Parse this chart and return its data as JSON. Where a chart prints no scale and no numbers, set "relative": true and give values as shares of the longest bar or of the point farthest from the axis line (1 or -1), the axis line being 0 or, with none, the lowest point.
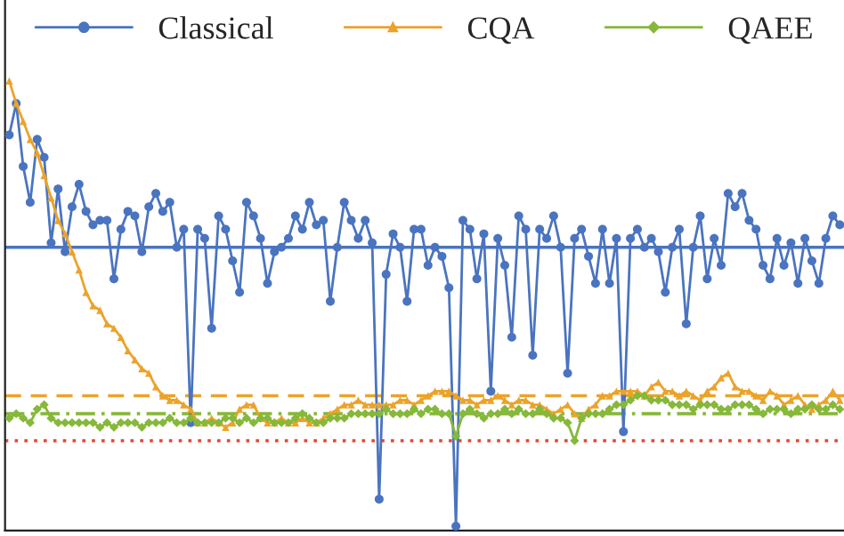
{
  "chart_data": {
    "type": "line",
    "relative": true,
    "legend": "top",
    "categories": [
      null,
      null,
      null,
      null,
      null,
      null,
      null,
      null,
      null,
      null,
      null,
      null,
      null,
      null,
      null,
      null,
      null,
      null,
      null,
      null,
      null,
      null,
      null,
      null,
      null,
      null,
      null,
      null,
      null,
      null,
      null,
      null,
      null,
      null,
      null,
      null,
      null,
      null,
      null,
      null,
      null,
      null,
      null,
      null,
      null,
      null,
      null,
      null,
      null,
      null,
      null,
      null,
      null,
      null,
      null,
      null,
      null,
      null,
      null,
      null,
      null,
      null,
      null,
      null,
      null,
      null,
      null,
      null,
      null,
      null,
      null,
      null,
      null,
      null,
      null,
      null,
      null,
      null,
      null,
      null,
      null,
      null,
      null,
      null,
      null,
      null,
      null,
      null,
      null,
      null,
      null,
      null,
      null,
      null,
      null,
      null,
      null,
      null,
      null,
      null,
      null,
      null,
      null,
      null,
      null,
      null,
      null,
      null,
      null,
      null,
      null,
      null,
      null,
      null,
      null,
      null,
      null,
      null,
      null,
      null
    ],
    "series": [
      {
        "name": "Classical",
        "color": "#4a74c0",
        "marker": "circle",
        "line_style": "solid",
        "values": [
          0.88,
          0.95,
          0.81,
          0.73,
          0.87,
          0.83,
          0.64,
          0.76,
          0.62,
          0.72,
          0.77,
          0.71,
          0.68,
          0.69,
          0.69,
          0.56,
          0.67,
          0.71,
          0.7,
          0.62,
          0.72,
          0.75,
          0.71,
          0.73,
          0.63,
          0.67,
          0.24,
          0.67,
          0.65,
          0.45,
          0.7,
          0.67,
          0.6,
          0.53,
          0.73,
          0.7,
          0.65,
          0.55,
          0.62,
          0.63,
          0.65,
          0.7,
          0.67,
          0.73,
          0.68,
          0.69,
          0.51,
          0.63,
          0.73,
          0.69,
          0.65,
          0.69,
          0.64,
          0.07,
          0.57,
          0.66,
          0.63,
          0.51,
          0.67,
          0.67,
          0.59,
          0.63,
          0.61,
          0.54,
          0.01,
          0.69,
          0.67,
          0.56,
          0.66,
          0.31,
          0.65,
          0.59,
          0.43,
          0.7,
          0.67,
          0.39,
          0.67,
          0.65,
          0.7,
          0.63,
          0.35,
          0.65,
          0.67,
          0.61,
          0.55,
          0.67,
          0.55,
          0.65,
          0.22,
          0.65,
          0.67,
          0.63,
          0.65,
          0.62,
          0.53,
          0.63,
          0.67,
          0.46,
          0.63,
          0.7,
          0.56,
          0.65,
          0.59,
          0.75,
          0.72,
          0.75,
          0.69,
          0.67,
          0.59,
          0.56,
          0.65,
          0.59,
          0.64,
          0.55,
          0.65,
          0.6,
          0.55,
          0.65,
          0.7,
          0.68
        ]
      },
      {
        "name": "CQA",
        "color": "#eba32a",
        "marker": "triangle",
        "line_style": "solid",
        "values": [
          1.0,
          0.95,
          0.91,
          0.87,
          0.84,
          0.79,
          0.74,
          0.69,
          0.66,
          0.62,
          0.58,
          0.53,
          0.5,
          0.49,
          0.46,
          0.45,
          0.43,
          0.4,
          0.38,
          0.36,
          0.35,
          0.32,
          0.3,
          0.29,
          0.29,
          0.28,
          0.27,
          0.24,
          0.24,
          0.25,
          0.24,
          0.23,
          0.24,
          0.27,
          0.28,
          0.28,
          0.25,
          0.24,
          0.24,
          0.25,
          0.24,
          0.24,
          0.25,
          0.24,
          0.24,
          0.25,
          0.26,
          0.27,
          0.28,
          0.28,
          0.29,
          0.28,
          0.28,
          0.28,
          0.28,
          0.28,
          0.29,
          0.29,
          0.28,
          0.29,
          0.3,
          0.31,
          0.31,
          0.31,
          0.3,
          0.29,
          0.29,
          0.28,
          0.29,
          0.29,
          0.3,
          0.29,
          0.28,
          0.29,
          0.29,
          0.28,
          0.28,
          0.27,
          0.26,
          0.27,
          0.28,
          0.26,
          0.25,
          0.27,
          0.28,
          0.3,
          0.3,
          0.31,
          0.31,
          0.31,
          0.31,
          0.3,
          0.32,
          0.33,
          0.31,
          0.31,
          0.3,
          0.31,
          0.3,
          0.29,
          0.31,
          0.32,
          0.34,
          0.35,
          0.32,
          0.31,
          0.31,
          0.3,
          0.29,
          0.31,
          0.3,
          0.28,
          0.29,
          0.3,
          0.28,
          0.27,
          0.28,
          0.29,
          0.31,
          0.29
        ]
      },
      {
        "name": "QAEE",
        "color": "#86b83a",
        "marker": "diamond",
        "line_style": "solid",
        "values": [
          0.25,
          0.26,
          0.25,
          0.24,
          0.27,
          0.28,
          0.25,
          0.24,
          0.24,
          0.24,
          0.24,
          0.24,
          0.24,
          0.23,
          0.24,
          0.23,
          0.24,
          0.24,
          0.24,
          0.23,
          0.24,
          0.24,
          0.24,
          0.25,
          0.24,
          0.24,
          0.25,
          0.24,
          0.24,
          0.24,
          0.24,
          0.25,
          0.25,
          0.24,
          0.25,
          0.24,
          0.25,
          0.25,
          0.24,
          0.24,
          0.24,
          0.25,
          0.26,
          0.25,
          0.24,
          0.24,
          0.25,
          0.25,
          0.25,
          0.26,
          0.26,
          0.26,
          0.26,
          0.26,
          0.27,
          0.26,
          0.26,
          0.26,
          0.27,
          0.26,
          0.27,
          0.27,
          0.26,
          0.26,
          0.21,
          0.26,
          0.27,
          0.26,
          0.25,
          0.26,
          0.26,
          0.27,
          0.26,
          0.27,
          0.26,
          0.26,
          0.27,
          0.26,
          0.25,
          0.25,
          0.24,
          0.2,
          0.25,
          0.26,
          0.26,
          0.26,
          0.27,
          0.28,
          0.28,
          0.29,
          0.3,
          0.3,
          0.29,
          0.29,
          0.29,
          0.28,
          0.28,
          0.28,
          0.27,
          0.28,
          0.28,
          0.28,
          0.27,
          0.27,
          0.28,
          0.28,
          0.28,
          0.27,
          0.26,
          0.27,
          0.27,
          0.27,
          0.26,
          0.27,
          0.27,
          0.28,
          0.27,
          0.27,
          0.28,
          0.27
        ]
      }
    ],
    "ref_lines": [
      {
        "axis": "y",
        "value": 0.63,
        "color": "#4a74c0",
        "line_style": "solid"
      },
      {
        "axis": "y",
        "value": 0.3,
        "color": "#eba32a",
        "line_style": "dashed"
      },
      {
        "axis": "y",
        "value": 0.26,
        "color": "#86b83a",
        "line_style": "dashdot"
      },
      {
        "axis": "y",
        "value": 0.2,
        "color": "#e8452c",
        "line_style": "dotted"
      }
    ]
  }
}
